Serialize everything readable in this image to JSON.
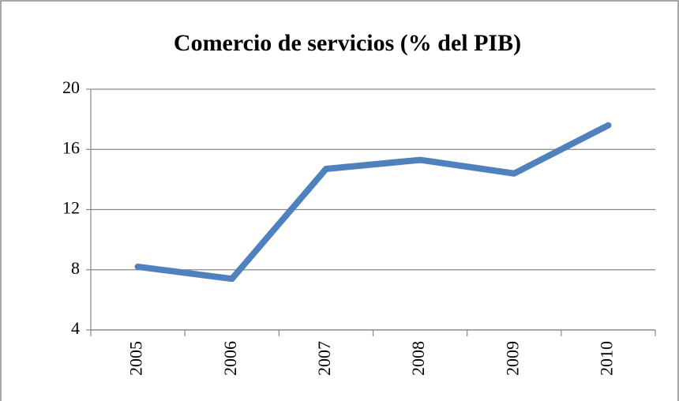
{
  "chart_data": {
    "type": "line",
    "title": "Comercio de servicios (% del PIB)",
    "categories": [
      "2005",
      "2006",
      "2007",
      "2008",
      "2009",
      "2010"
    ],
    "series": [
      {
        "name": "Comercio de servicios",
        "color": "#4f81bd",
        "values": [
          8.2,
          7.4,
          14.7,
          15.3,
          14.4,
          17.6
        ]
      }
    ],
    "ylim": [
      4,
      20
    ],
    "yticks": [
      4,
      8,
      12,
      16,
      20
    ],
    "grid": true
  }
}
